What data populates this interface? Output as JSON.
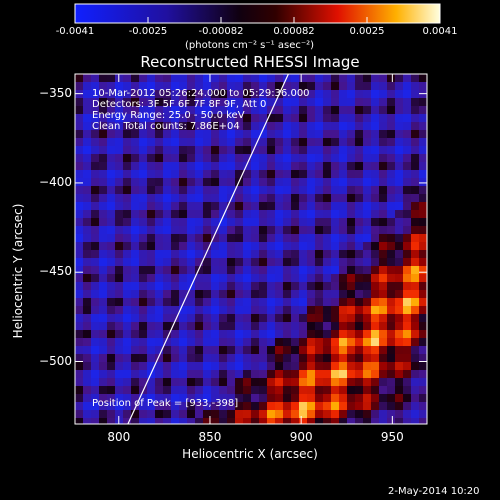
{
  "colorbar": {
    "ticks": [
      "-0.0041",
      "-0.0025",
      "-0.00082",
      "0.00082",
      "0.0025",
      "0.0041"
    ],
    "units_label": "(photons cm⁻² s⁻¹ asec⁻²)"
  },
  "info": {
    "time_range": "10-Mar-2012 05:26:24.000 to 05:29:36.000",
    "detectors": "Detectors: 3F 5F 6F 7F 8F 9F, Att 0",
    "energy_range": "Energy Range: 25.0 - 50.0 keV",
    "clean": "Clean    Total counts: 7.86E+04",
    "peak": "Position of Peak = [933,-398]"
  },
  "footer": {
    "date": "2-May-2014 10:20"
  },
  "chart_data": {
    "type": "heatmap",
    "title": "Reconstructed RHESSI Image",
    "xlabel": "Heliocentric X (arcsec)",
    "ylabel": "Heliocentric Y (arcsec)",
    "xlim": [
      776,
      969
    ],
    "ylim": [
      -535,
      -339
    ],
    "xticks": [
      800,
      850,
      900,
      950
    ],
    "yticks": [
      -350,
      -400,
      -450,
      -500
    ],
    "zlim": [
      -0.0041,
      0.0041
    ],
    "peak": [
      933,
      -398
    ],
    "limb_line": [
      [
        805,
        -535
      ],
      [
        893,
        -339
      ]
    ],
    "colormap": "blue-black-red-yellow-white"
  }
}
